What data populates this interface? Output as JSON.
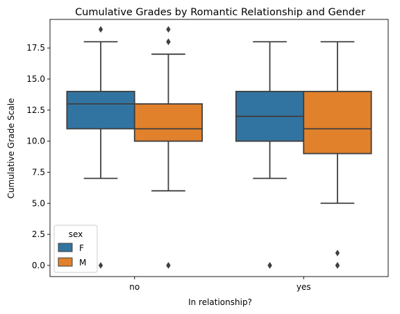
{
  "chart_data": {
    "type": "boxplot",
    "title": "Cumulative Grades by Romantic Relationship and Gender",
    "xlabel": "In relationship?",
    "ylabel": "Cumulative Grade Scale",
    "categories": [
      "no",
      "yes"
    ],
    "ylim": [
      -0.9,
      19.8
    ],
    "yticks": [
      0.0,
      2.5,
      5.0,
      7.5,
      10.0,
      12.5,
      15.0,
      17.5
    ],
    "ytick_labels": [
      "0.0",
      "2.5",
      "5.0",
      "7.5",
      "10.0",
      "12.5",
      "15.0",
      "17.5"
    ],
    "grid": false,
    "legend": {
      "title": "sex",
      "placement": "lower-left"
    },
    "series": [
      {
        "name": "F",
        "color": "#3274a1",
        "boxes": [
          {
            "category": "no",
            "whisker_low": 7,
            "q1": 11,
            "median": 13,
            "q3": 14,
            "whisker_high": 18,
            "outliers": [
              0,
              19
            ]
          },
          {
            "category": "yes",
            "whisker_low": 7,
            "q1": 10,
            "median": 12,
            "q3": 14,
            "whisker_high": 18,
            "outliers": [
              0,
              0
            ]
          }
        ]
      },
      {
        "name": "M",
        "color": "#e1812c",
        "boxes": [
          {
            "category": "no",
            "whisker_low": 6,
            "q1": 10,
            "median": 11,
            "q3": 13,
            "whisker_high": 17,
            "outliers": [
              0,
              0,
              18,
              18,
              19
            ]
          },
          {
            "category": "yes",
            "whisker_low": 5,
            "q1": 9,
            "median": 11,
            "q3": 14,
            "whisker_high": 18,
            "outliers": [
              0,
              0,
              1
            ]
          }
        ]
      }
    ]
  }
}
